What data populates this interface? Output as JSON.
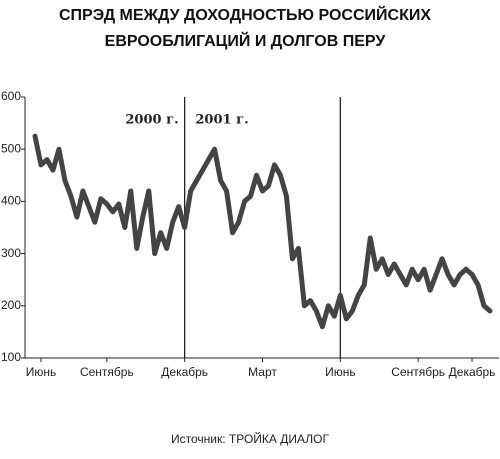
{
  "chart_data": {
    "type": "line",
    "title": [
      "СПРЭД МЕЖДУ ДОХОДНОСТЬЮ РОССИЙСКИХ",
      "ЕВРООБЛИГАЦИЙ И ДОЛГОВ ПЕРУ"
    ],
    "source": "Источник: ТРОЙКА ДИАЛОГ",
    "annotations": [
      "2000 г.",
      "2001 г."
    ],
    "categories": [
      null,
      "Июнь",
      null,
      null,
      null,
      null,
      null,
      null,
      null,
      null,
      null,
      null,
      "Сентябрь",
      null,
      null,
      null,
      null,
      null,
      null,
      null,
      null,
      null,
      null,
      null,
      null,
      "Декабрь",
      null,
      null,
      null,
      null,
      null,
      null,
      null,
      null,
      null,
      null,
      null,
      null,
      "Март",
      null,
      null,
      null,
      null,
      null,
      null,
      null,
      null,
      null,
      null,
      null,
      null,
      "Июнь",
      null,
      null,
      null,
      null,
      null,
      null,
      null,
      null,
      null,
      null,
      null,
      null,
      "Сентябрь",
      null,
      null,
      null,
      null,
      null,
      null,
      null,
      null,
      "Декабрь",
      null,
      null,
      null
    ],
    "series": [
      {
        "color": "#444444",
        "values": [
          525,
          470,
          480,
          460,
          500,
          440,
          410,
          370,
          420,
          390,
          360,
          405,
          395,
          380,
          395,
          350,
          420,
          310,
          370,
          420,
          300,
          340,
          310,
          360,
          390,
          350,
          420,
          440,
          460,
          480,
          500,
          440,
          420,
          340,
          360,
          400,
          410,
          450,
          420,
          430,
          470,
          450,
          410,
          290,
          310,
          200,
          210,
          190,
          160,
          200,
          180,
          220,
          175,
          190,
          220,
          240,
          330,
          270,
          290,
          260,
          280,
          260,
          240,
          270,
          250,
          270,
          230,
          260,
          290,
          260,
          240,
          260,
          270,
          260,
          240,
          200,
          190
        ]
      }
    ],
    "vlines": [
      25,
      51
    ],
    "ylim": [
      100,
      600
    ],
    "yticks": [
      100,
      200,
      300,
      400,
      500,
      600
    ]
  }
}
